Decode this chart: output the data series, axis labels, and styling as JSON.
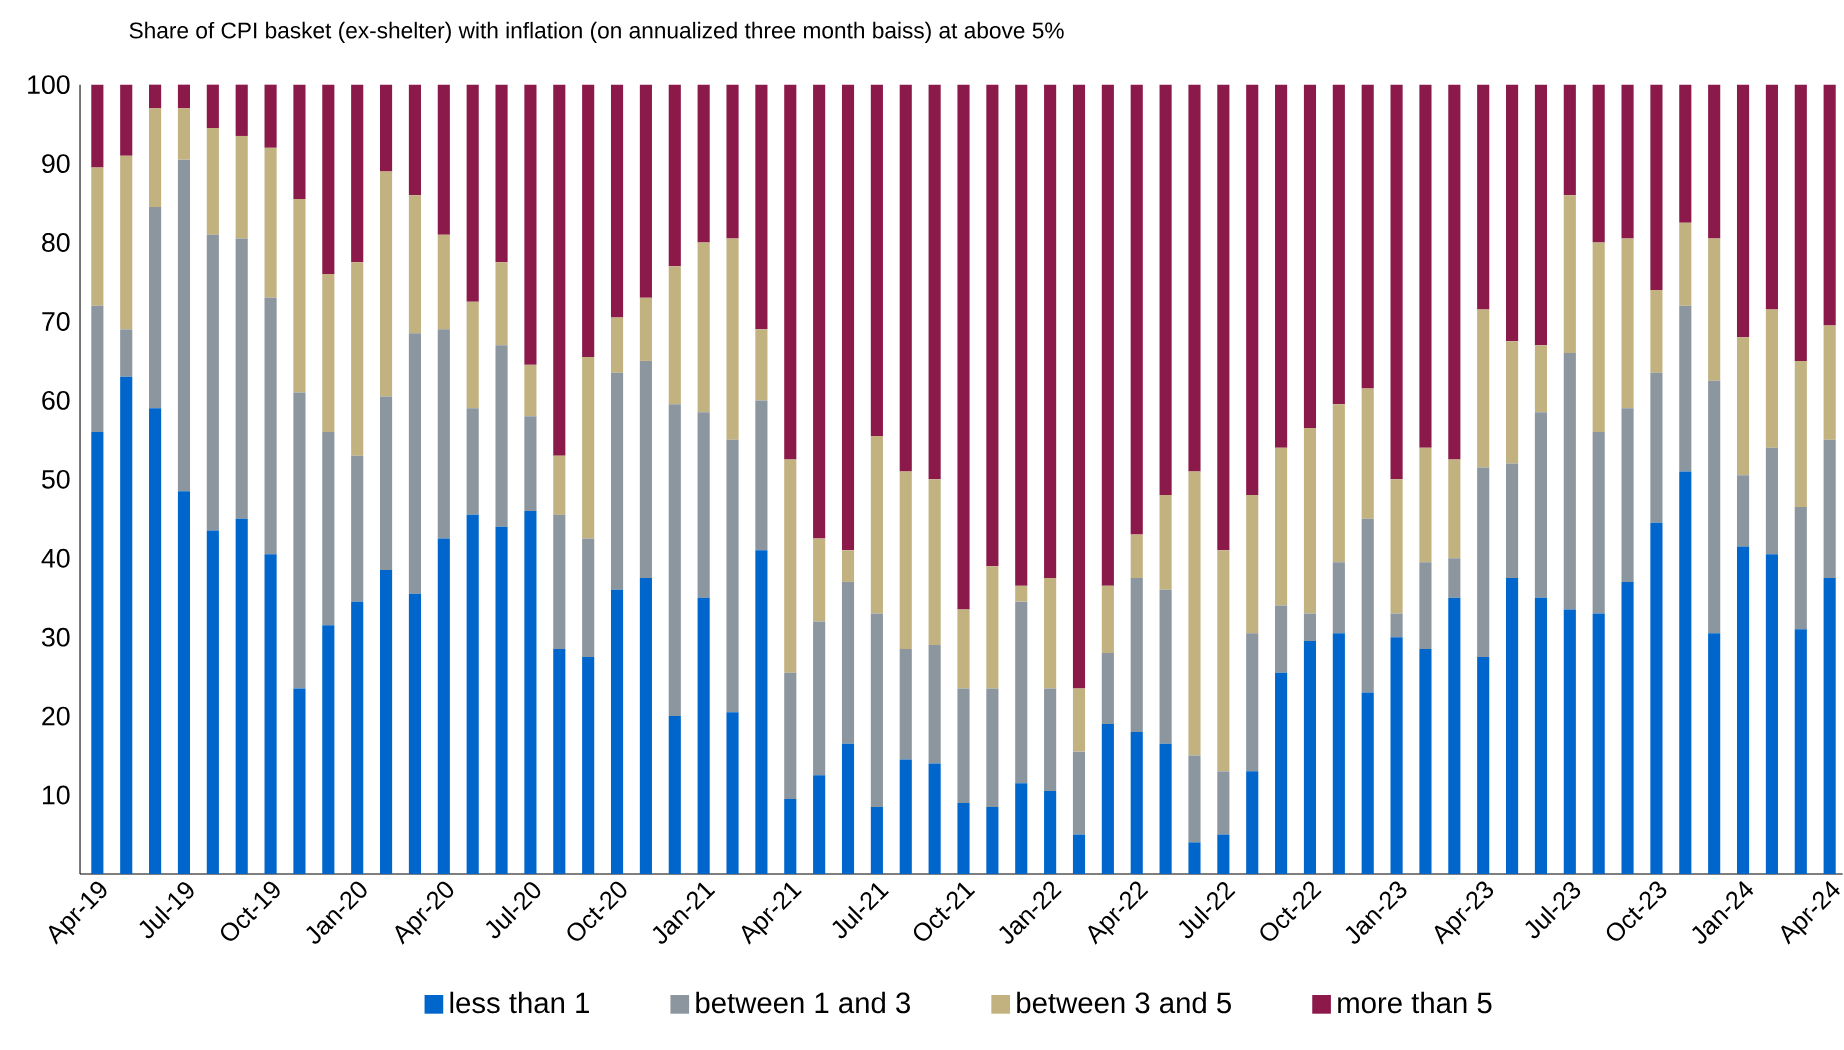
{
  "chart_data": {
    "type": "bar",
    "stacked": true,
    "title": "Share of CPI basket (ex-shelter) with inflation (on annualized three month baiss) at above 5%",
    "categories": [
      "Apr-19",
      null,
      null,
      "Jul-19",
      null,
      null,
      "Oct-19",
      null,
      null,
      "Jan-20",
      null,
      null,
      "Apr-20",
      null,
      null,
      "Jul-20",
      null,
      null,
      "Oct-20",
      null,
      null,
      "Jan-21",
      null,
      null,
      "Apr-21",
      null,
      null,
      "Jul-21",
      null,
      null,
      "Oct-21",
      null,
      null,
      "Jan-22",
      null,
      null,
      "Apr-22",
      null,
      null,
      "Jul-22",
      null,
      null,
      "Oct-22",
      null,
      null,
      "Jan-23",
      null,
      null,
      "Apr-23",
      null,
      null,
      "Jul-23",
      null,
      null,
      "Oct-23",
      null,
      null,
      "Jan-24",
      null,
      null,
      "Apr-24"
    ],
    "series": [
      {
        "name": "less than 1",
        "color": "#0066cc",
        "values": [
          56,
          63,
          59,
          48.5,
          43.5,
          45,
          40.5,
          23.5,
          31.5,
          34.5,
          38.5,
          35.5,
          42.5,
          45.5,
          44,
          46,
          28.5,
          27.5,
          36,
          37.5,
          20,
          35,
          20.5,
          41,
          9.5,
          12.5,
          16.5,
          8.5,
          14.5,
          14,
          9,
          8.5,
          11.5,
          10.5,
          5,
          19,
          18,
          16.5,
          4,
          5,
          13,
          25.5,
          29.5,
          30.5,
          23,
          30,
          28.5,
          35,
          27.5,
          37.5,
          35,
          33.5,
          33,
          37,
          44.5,
          51,
          30.5,
          41.5,
          40.5,
          31,
          37.5
        ]
      },
      {
        "name": "between 1 and 3",
        "color": "#8c969e",
        "values": [
          16,
          6,
          25.5,
          42,
          37.5,
          35.5,
          32.5,
          37.5,
          24.5,
          18.5,
          22,
          33,
          26.5,
          13.5,
          23,
          12,
          17,
          15,
          27.5,
          27.5,
          39.5,
          23.5,
          34.5,
          19,
          16,
          19.5,
          20.5,
          24.5,
          14,
          15,
          14.5,
          15,
          23,
          13,
          10.5,
          9,
          19.5,
          19.5,
          11,
          8,
          17.5,
          8.5,
          3.5,
          9,
          22,
          3,
          11,
          5,
          24,
          14.5,
          23.5,
          32.5,
          23,
          22,
          19,
          21,
          32,
          9,
          13.5,
          15.5,
          17.5
        ]
      },
      {
        "name": "between 3 and 5",
        "color": "#c2b280",
        "values": [
          17.5,
          22,
          12.5,
          6.5,
          13.5,
          13,
          19,
          24.5,
          20,
          24.5,
          28.5,
          17.5,
          12,
          13.5,
          10.5,
          6.5,
          7.5,
          23,
          7,
          8,
          17.5,
          21.5,
          25.5,
          9,
          27,
          10.5,
          4,
          22.5,
          22.5,
          21,
          10,
          15.5,
          2,
          14,
          8,
          8.5,
          5.5,
          12,
          36,
          28,
          17.5,
          20,
          23.5,
          20,
          16.5,
          17,
          14.5,
          12.5,
          20,
          15.5,
          8.5,
          20,
          24,
          21.5,
          10.5,
          10.5,
          18,
          17.5,
          17.5,
          18.5,
          14.5
        ]
      },
      {
        "name": "more than 5",
        "color": "#8b1a4a",
        "values": [
          10.5,
          9,
          3,
          3,
          5.5,
          6.5,
          8,
          14.5,
          24,
          22.5,
          11,
          14,
          19,
          27.5,
          22.5,
          35.5,
          47,
          34.5,
          29.5,
          27,
          23,
          20,
          19.5,
          31,
          47.5,
          57.5,
          59,
          44.5,
          49,
          50,
          66.5,
          61,
          63.5,
          62.5,
          76.5,
          63.5,
          57,
          52,
          49,
          59,
          52,
          46,
          43.5,
          40.5,
          38.5,
          50,
          46,
          47.5,
          28.5,
          32.5,
          33,
          14,
          20,
          19.5,
          26,
          17.5,
          19.5,
          32,
          28.5,
          35,
          30.5
        ]
      }
    ],
    "ylim": [
      0,
      100
    ],
    "yticks": [
      10,
      20,
      30,
      40,
      50,
      60,
      70,
      80,
      90,
      100
    ],
    "legend": "bottom"
  }
}
